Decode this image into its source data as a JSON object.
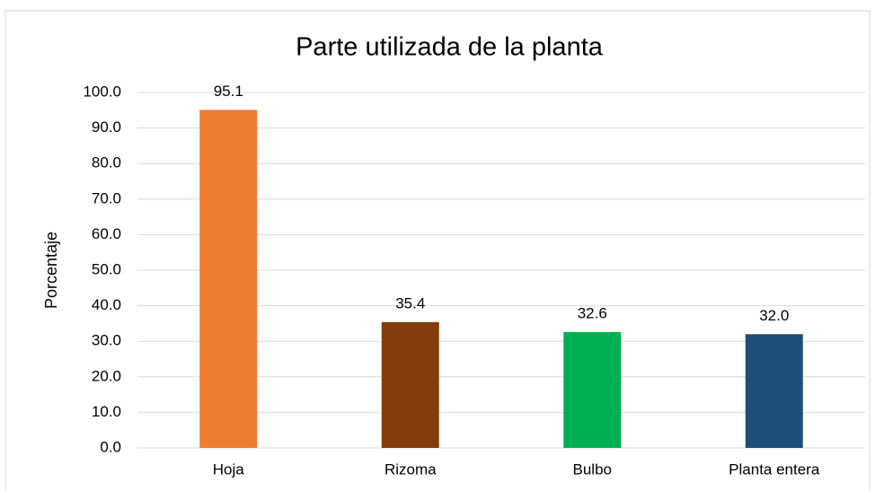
{
  "chart_data": {
    "type": "bar",
    "title": "Parte utilizada de la planta",
    "y_label": "Porcentaje",
    "categories": [
      "Hoja",
      "Rizoma",
      "Bulbo",
      "Planta entera"
    ],
    "values": [
      95.1,
      35.4,
      32.6,
      32.0
    ],
    "value_labels": [
      "95.1",
      "35.4",
      "32.6",
      "32.0"
    ],
    "colors": [
      "#ed7d31",
      "#843c0c",
      "#00b050",
      "#1f4e79"
    ],
    "ylim": [
      0,
      100
    ],
    "yticks": [
      {
        "value": 0,
        "label": "0.0"
      },
      {
        "value": 10,
        "label": "10.0"
      },
      {
        "value": 20,
        "label": "20.0"
      },
      {
        "value": 30,
        "label": "30.0"
      },
      {
        "value": 40,
        "label": "40.0"
      },
      {
        "value": 50,
        "label": "50.0"
      },
      {
        "value": 60,
        "label": "60.0"
      },
      {
        "value": 70,
        "label": "70.0"
      },
      {
        "value": 80,
        "label": "80.0"
      },
      {
        "value": 90,
        "label": "90.0"
      },
      {
        "value": 100,
        "label": "100.0"
      }
    ],
    "grid": true
  }
}
